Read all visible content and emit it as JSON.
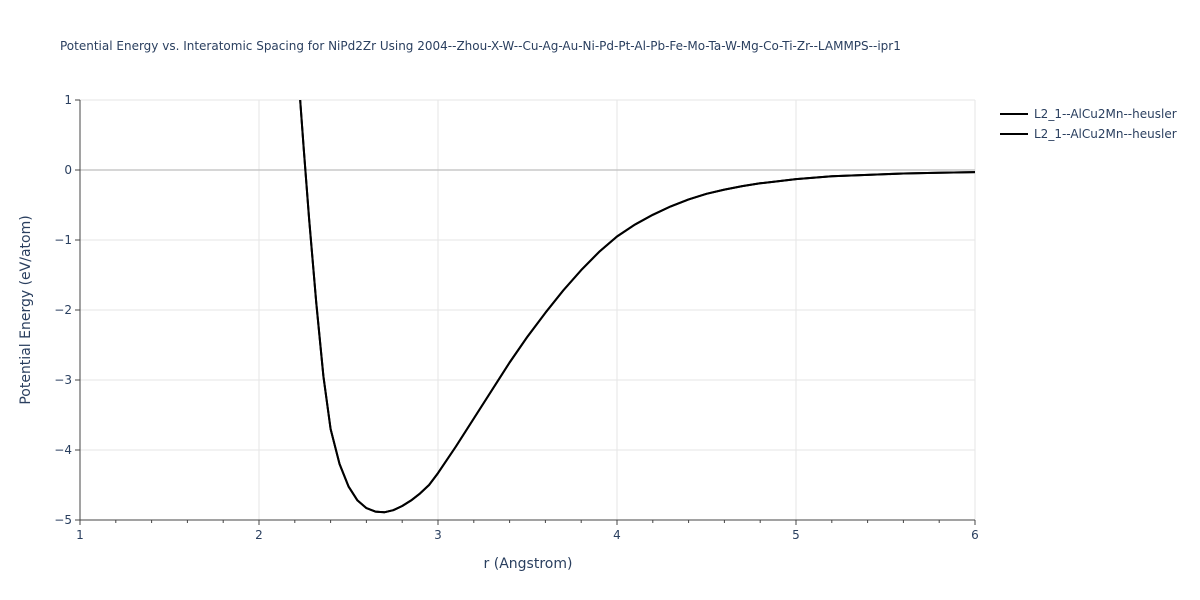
{
  "chart_data": {
    "type": "line",
    "title": "Potential Energy vs. Interatomic Spacing for NiPd2Zr Using 2004--Zhou-X-W--Cu-Ag-Au-Ni-Pd-Pt-Al-Pb-Fe-Mo-Ta-W-Mg-Co-Ti-Zr--LAMMPS--ipr1",
    "xlabel": "r (Angstrom)",
    "ylabel": "Potential Energy (eV/atom)",
    "xlim": [
      1,
      6
    ],
    "ylim": [
      -5,
      1
    ],
    "xticks": [
      1,
      2,
      3,
      4,
      5,
      6
    ],
    "yticks": [
      1,
      0,
      -1,
      -2,
      -3,
      -4,
      -5
    ],
    "xtick_labels": [
      "1",
      "2",
      "3",
      "4",
      "5",
      "6"
    ],
    "ytick_labels": [
      "1",
      "0",
      "−1",
      "−2",
      "−3",
      "−4",
      "−5"
    ],
    "grid": true,
    "legend_position": "top-right",
    "series": [
      {
        "name": "L2_1--AlCu2Mn--heusler",
        "color": "#000000",
        "x": [
          2.23,
          2.25,
          2.28,
          2.32,
          2.36,
          2.4,
          2.45,
          2.5,
          2.55,
          2.6,
          2.65,
          2.7,
          2.75,
          2.8,
          2.85,
          2.9,
          2.95,
          3.0,
          3.1,
          3.2,
          3.3,
          3.4,
          3.5,
          3.6,
          3.7,
          3.8,
          3.9,
          4.0,
          4.1,
          4.2,
          4.3,
          4.4,
          4.5,
          4.6,
          4.7,
          4.8,
          4.9,
          5.0,
          5.2,
          5.4,
          5.6,
          5.8,
          6.0
        ],
        "y": [
          1.0,
          0.3,
          -0.7,
          -1.9,
          -2.95,
          -3.7,
          -4.2,
          -4.52,
          -4.72,
          -4.83,
          -4.88,
          -4.89,
          -4.86,
          -4.8,
          -4.72,
          -4.62,
          -4.5,
          -4.33,
          -3.95,
          -3.55,
          -3.15,
          -2.75,
          -2.38,
          -2.04,
          -1.72,
          -1.43,
          -1.17,
          -0.95,
          -0.78,
          -0.64,
          -0.52,
          -0.42,
          -0.34,
          -0.28,
          -0.23,
          -0.19,
          -0.16,
          -0.13,
          -0.09,
          -0.07,
          -0.05,
          -0.04,
          -0.03
        ]
      },
      {
        "name": "L2_1--AlCu2Mn--heusler",
        "color": "#000000",
        "x": [
          2.23,
          2.25,
          2.28,
          2.32,
          2.36,
          2.4,
          2.45,
          2.5,
          2.55,
          2.6,
          2.65,
          2.7,
          2.75,
          2.8,
          2.85,
          2.9,
          2.95,
          3.0,
          3.1,
          3.2,
          3.3,
          3.4,
          3.5,
          3.6,
          3.7,
          3.8,
          3.9,
          4.0,
          4.1,
          4.2,
          4.3,
          4.4,
          4.5,
          4.6,
          4.7,
          4.8,
          4.9,
          5.0,
          5.2,
          5.4,
          5.6,
          5.8,
          6.0
        ],
        "y": [
          1.0,
          0.3,
          -0.7,
          -1.9,
          -2.95,
          -3.7,
          -4.2,
          -4.52,
          -4.72,
          -4.83,
          -4.88,
          -4.89,
          -4.86,
          -4.8,
          -4.72,
          -4.62,
          -4.5,
          -4.33,
          -3.95,
          -3.55,
          -3.15,
          -2.75,
          -2.38,
          -2.04,
          -1.72,
          -1.43,
          -1.17,
          -0.95,
          -0.78,
          -0.64,
          -0.52,
          -0.42,
          -0.34,
          -0.28,
          -0.23,
          -0.19,
          -0.16,
          -0.13,
          -0.09,
          -0.07,
          -0.05,
          -0.04,
          -0.03
        ]
      }
    ]
  }
}
